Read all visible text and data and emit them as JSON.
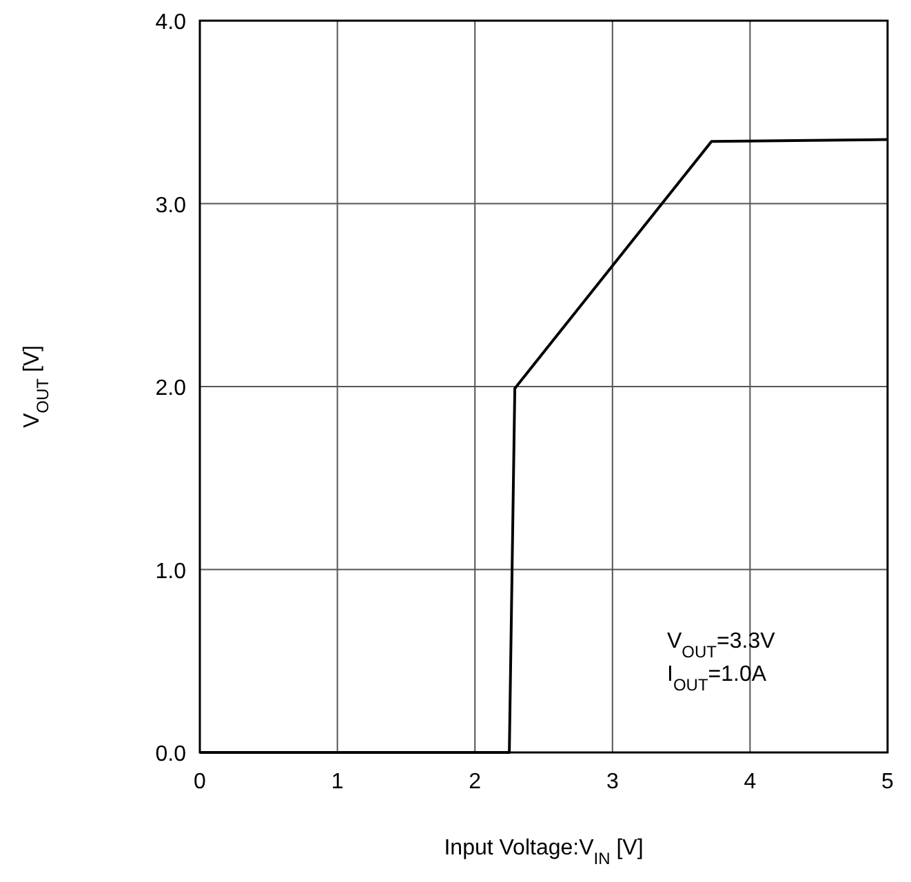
{
  "chart_data": {
    "type": "line",
    "xlabel": "Input Voltage:V$_{IN}$ [V]",
    "ylabel": "V$_{OUT}$ [V]",
    "x": [
      0,
      2.25,
      2.29,
      3.72,
      5
    ],
    "series": [
      {
        "color": "#000000",
        "values": [
          0,
          0,
          1.99,
          3.34,
          3.35
        ]
      }
    ],
    "xlim": [
      0,
      5
    ],
    "xticks": [
      0,
      1,
      2,
      3,
      4,
      5
    ],
    "ylim": [
      0,
      4
    ],
    "yticks": [
      {
        "value": 0,
        "label": "0.0"
      },
      {
        "value": 1,
        "label": "1.0"
      },
      {
        "value": 2,
        "label": "2.0"
      },
      {
        "value": 3,
        "label": "3.0"
      },
      {
        "value": 4,
        "label": "4.0"
      }
    ],
    "grid": true,
    "marker": "none",
    "line_style": "solid",
    "annotations": [
      "V$_{OUT}$=3.3V",
      "I$_{OUT}$=1.0A"
    ]
  }
}
